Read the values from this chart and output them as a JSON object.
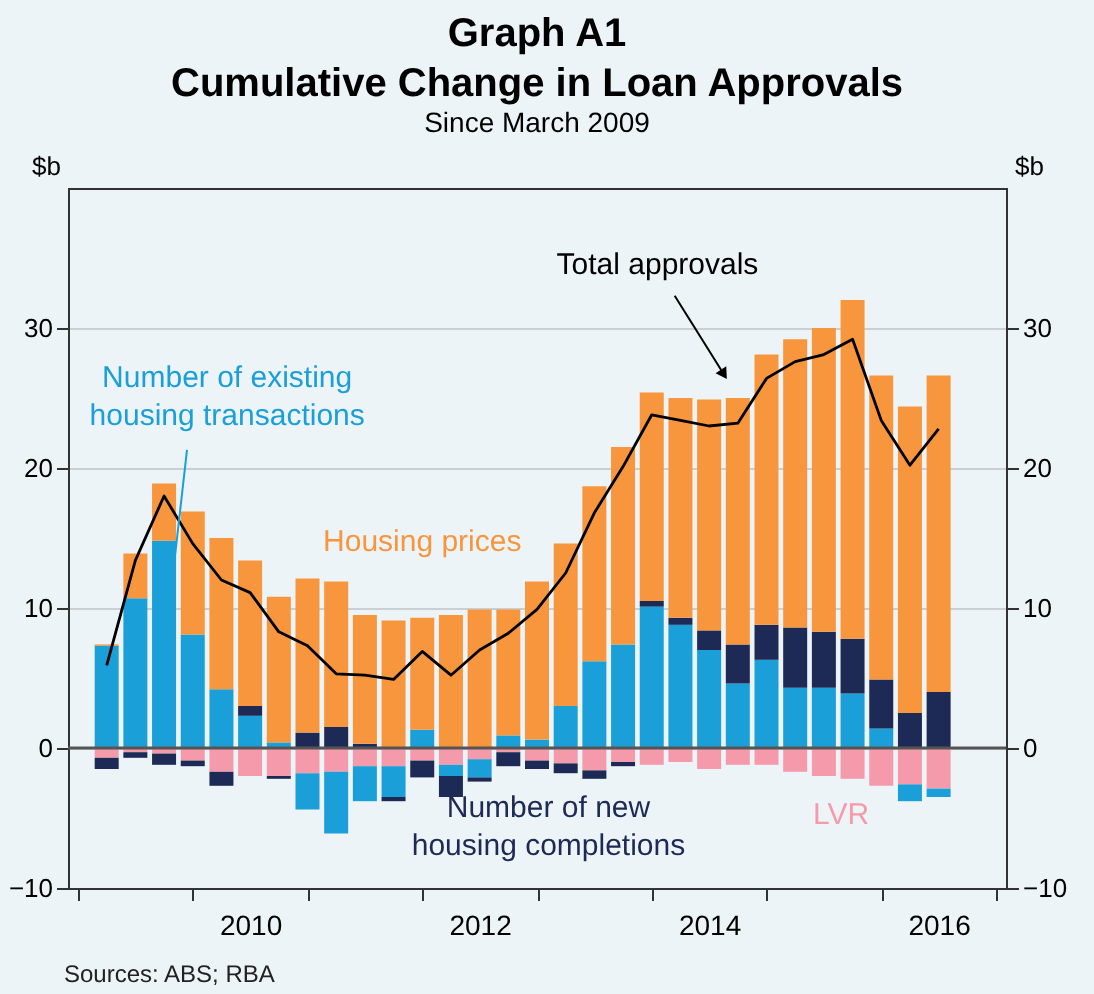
{
  "chart_data": {
    "type": "bar",
    "stacked": true,
    "title": "Graph A1\nCumulative Change in Loan Approvals",
    "subtitle": "Since March 2009",
    "ylabel": "$b",
    "y2label": "$b",
    "x": [
      2009.25,
      2009.5,
      2009.75,
      2010.0,
      2010.25,
      2010.5,
      2010.75,
      2011.0,
      2011.25,
      2011.5,
      2011.75,
      2012.0,
      2012.25,
      2012.5,
      2012.75,
      2013.0,
      2013.25,
      2013.5,
      2013.75,
      2014.0,
      2014.25,
      2014.5,
      2014.75,
      2015.0,
      2015.25,
      2015.5,
      2015.75,
      2016.0,
      2016.25,
      2016.5
    ],
    "series": [
      {
        "name": "LVR",
        "color": "#f49aab",
        "values": [
          -0.7,
          -0.3,
          -0.4,
          -0.9,
          -1.7,
          -2.0,
          -2.0,
          -1.8,
          -1.7,
          -1.3,
          -1.3,
          -0.9,
          -1.2,
          -0.8,
          -0.3,
          -0.9,
          -1.1,
          -1.6,
          -1.0,
          -1.2,
          -1.0,
          -1.5,
          -1.2,
          -1.2,
          -1.7,
          -2.0,
          -2.2,
          -2.7,
          -2.6,
          -2.9
        ]
      },
      {
        "name": "Number of existing housing transactions",
        "color": "#1a9fd9",
        "values": [
          7.3,
          10.7,
          14.8,
          8.1,
          4.2,
          2.3,
          0.4,
          -2.6,
          -4.4,
          -2.5,
          -2.2,
          1.3,
          -0.8,
          -1.3,
          0.9,
          0.6,
          3.0,
          6.2,
          7.4,
          10.1,
          8.8,
          7.0,
          4.6,
          6.3,
          4.3,
          4.3,
          3.9,
          1.4,
          -1.2,
          -0.6
        ]
      },
      {
        "name": "Number of new housing completions",
        "color": "#1c2a55",
        "values": [
          -0.8,
          -0.4,
          -0.8,
          -0.4,
          -1.0,
          0.7,
          -0.2,
          1.1,
          1.5,
          0.3,
          -0.3,
          -1.2,
          -1.5,
          -0.3,
          -1.0,
          -0.6,
          -0.7,
          -0.6,
          -0.3,
          0.4,
          0.5,
          1.4,
          2.8,
          2.5,
          4.3,
          4.0,
          3.9,
          3.5,
          2.5,
          4.0
        ]
      },
      {
        "name": "Housing prices",
        "color": "#f7963d",
        "values": [
          0.1,
          3.2,
          4.1,
          8.8,
          10.8,
          10.4,
          10.4,
          11.0,
          10.4,
          9.2,
          9.1,
          8.0,
          9.5,
          9.9,
          9.0,
          11.3,
          11.6,
          12.5,
          14.1,
          14.9,
          15.7,
          16.5,
          17.6,
          19.3,
          20.6,
          21.7,
          24.2,
          21.7,
          21.9,
          22.6
        ]
      },
      {
        "name": "Total approvals",
        "type": "line",
        "color": "#000000",
        "values": [
          5.9,
          13.4,
          18.0,
          14.6,
          12.0,
          11.1,
          8.3,
          7.3,
          5.3,
          5.2,
          4.9,
          6.9,
          5.2,
          7.0,
          8.2,
          9.9,
          12.5,
          16.8,
          20.1,
          23.8,
          23.4,
          23.0,
          23.2,
          26.4,
          27.6,
          28.1,
          29.2,
          23.4,
          20.2,
          22.8
        ]
      }
    ],
    "xlim": [
      2009,
      2017
    ],
    "xticks": [
      {
        "value": 2009,
        "label": null
      },
      {
        "value": 2010,
        "label": null
      },
      {
        "value": 2010.5,
        "label": "2010"
      },
      {
        "value": 2011,
        "label": null
      },
      {
        "value": 2012,
        "label": null
      },
      {
        "value": 2012.5,
        "label": "2012"
      },
      {
        "value": 2013,
        "label": null
      },
      {
        "value": 2014,
        "label": null
      },
      {
        "value": 2014.5,
        "label": "2014"
      },
      {
        "value": 2015,
        "label": null
      },
      {
        "value": 2016,
        "label": null
      },
      {
        "value": 2016.5,
        "label": "2016"
      },
      {
        "value": 2017,
        "label": null
      }
    ],
    "ylim": [
      -10,
      40
    ],
    "yticks": [
      -10,
      0,
      10,
      20,
      30
    ],
    "y2lim": [
      -10,
      40
    ],
    "y2ticks": [
      -10,
      0,
      10,
      20,
      30
    ],
    "grid": "y",
    "annotations": [
      "Sources: ABS; RBA"
    ]
  }
}
